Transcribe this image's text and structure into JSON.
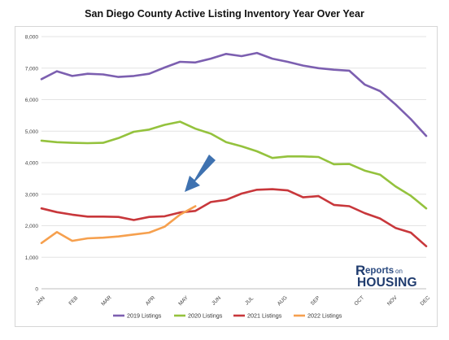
{
  "colors": {
    "series_2019": "#7c5fb0",
    "series_2020": "#94c23d",
    "series_2021": "#c8373b",
    "series_2022": "#f6a04e",
    "arrow": "#3f72b0",
    "grid": "#e3e3e3"
  },
  "logo": {
    "text_r": "R",
    "text_eports": "eports",
    "text_on": "on",
    "text_housing": "HOUSING"
  },
  "chart_data": {
    "type": "line",
    "title": "San Diego County Active Listing Inventory Year Over Year",
    "xlabel": "",
    "ylabel": "",
    "ylim": [
      0,
      8000
    ],
    "yticks": [
      0,
      1000,
      2000,
      3000,
      4000,
      5000,
      6000,
      7000,
      8000
    ],
    "ytick_labels": [
      "0",
      "1,000",
      "2,000",
      "3,000",
      "4,000",
      "5,000",
      "6,000",
      "7,000",
      "8,000"
    ],
    "x_points_per_series": 36,
    "xtick_labels": [
      "JAN",
      "FEB",
      "MAR",
      "APR",
      "MAY",
      "JUN",
      "JUL",
      "AUG",
      "SEP",
      "OCT",
      "NOV",
      "DEC"
    ],
    "xtick_positions": [
      0,
      3,
      6,
      10,
      13,
      16,
      19,
      22,
      25,
      29,
      32,
      35
    ],
    "grid": true,
    "legend_position": "bottom",
    "series": [
      {
        "name": "2019 Listings",
        "values": [
          6650,
          6900,
          6750,
          6820,
          6800,
          6720,
          6750,
          6820,
          7020,
          7200,
          7180,
          7300,
          7450,
          7380,
          7480,
          7300,
          7200,
          7080,
          7000,
          6950,
          6920,
          6480,
          6270,
          5850,
          5380,
          4850
        ]
      },
      {
        "name": "2020 Listings",
        "values": [
          4700,
          4650,
          4630,
          4620,
          4630,
          4780,
          4980,
          5050,
          5200,
          5300,
          5080,
          4920,
          4650,
          4520,
          4360,
          4150,
          4200,
          4200,
          4180,
          3950,
          3960,
          3750,
          3620,
          3250,
          2950,
          2550
        ]
      },
      {
        "name": "2021 Listings",
        "values": [
          2550,
          2430,
          2350,
          2290,
          2290,
          2280,
          2180,
          2280,
          2300,
          2420,
          2470,
          2750,
          2820,
          3020,
          3140,
          3160,
          3120,
          2900,
          2940,
          2660,
          2620,
          2400,
          2230,
          1930,
          1780,
          1350
        ]
      },
      {
        "name": "2022 Listings",
        "values": [
          1450,
          1800,
          1520,
          1600,
          1620,
          1660,
          1720,
          1780,
          1970,
          2350,
          2620
        ]
      }
    ]
  }
}
